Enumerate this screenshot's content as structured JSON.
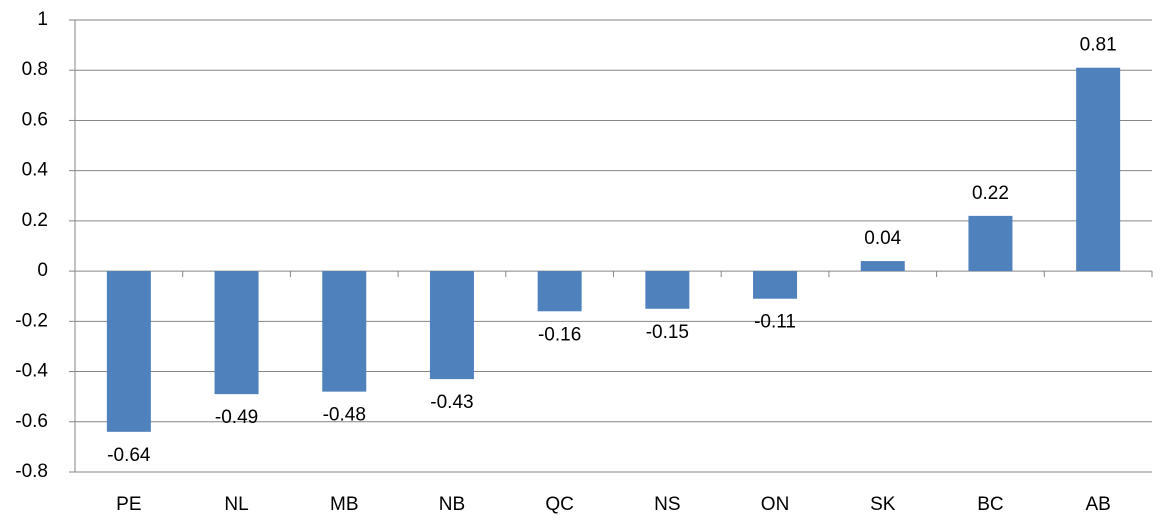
{
  "chart_data": {
    "type": "bar",
    "categories": [
      "PE",
      "NL",
      "MB",
      "NB",
      "QC",
      "NS",
      "ON",
      "SK",
      "BC",
      "AB"
    ],
    "values": [
      -0.64,
      -0.49,
      -0.48,
      -0.43,
      -0.16,
      -0.15,
      -0.11,
      0.04,
      0.22,
      0.81
    ],
    "color": "#4f81bd",
    "ylim": [
      -0.8,
      1
    ],
    "yticks": [
      -0.8,
      -0.6,
      -0.4,
      -0.2,
      0,
      0.2,
      0.4,
      0.6,
      0.8,
      1
    ],
    "grid": true
  }
}
